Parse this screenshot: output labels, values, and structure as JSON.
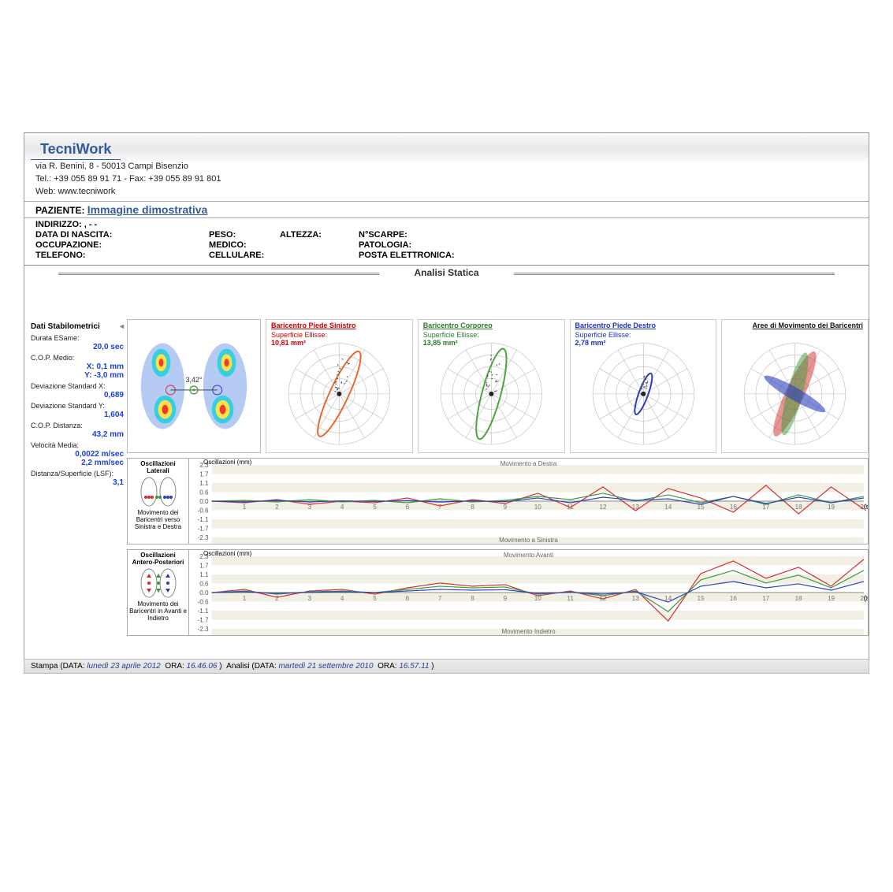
{
  "header": {
    "company": "TecniWork",
    "address": "via R. Benini, 8 - 50013  Campi Bisenzio",
    "tel": "Tel.: +39 055 89 91 71  - Fax: +39 055 89 91 801",
    "web": "Web: www.tecniwork"
  },
  "patient": {
    "label": "PAZIENTE:",
    "name": "Immagine  dimostrativa",
    "fields": {
      "indirizzo": "INDIRIZZO: ,   -   -",
      "dob": "DATA DI NASCITA:",
      "occup": "OCCUPAZIONE:",
      "tel": "TELEFONO:",
      "peso": "PESO:",
      "medico": "MEDICO:",
      "cell": "CELLULARE:",
      "altezza": "ALTEZZA:",
      "scarpe": "N°SCARPE:",
      "patologia": "PATOLOGIA:",
      "email": "POSTA ELETTRONICA:"
    }
  },
  "section_title": "Analisi Statica",
  "stabilo": {
    "title": "Dati Stabilometrici",
    "durata_l": "Durata ESame:",
    "durata_v": "20,0 sec",
    "cop_l": "C.O.P. Medio:",
    "cop_x": "X: 0,1 mm",
    "cop_y": "Y: -3,0 mm",
    "dsx_l": "Deviazione Standard X:",
    "dsx_v": "0,689",
    "dsy_l": "Deviazione Standard Y:",
    "dsy_v": "1,604",
    "dist_l": "C.O.P. Distanza:",
    "dist_v": "43,2 mm",
    "vel_l": "Velocità Media:",
    "vel_v1": "0,0022 m/sec",
    "vel_v2": "2,2 mm/sec",
    "lsf_l": "Distanza/Superficie (LSF):",
    "lsf_v": "3,1"
  },
  "footprint": {
    "angle_label": "3,42°"
  },
  "polar": {
    "left": {
      "title": "Baricentro Piede Sinistro",
      "sub": "Superficie Ellisse:",
      "val": "10,81 mm²",
      "color": "#e86a2a",
      "rot": 25
    },
    "body": {
      "title": "Baricentro Corporeo",
      "sub": "Superficie Ellisse:",
      "val": "13,85 mm²",
      "color": "#4aa63a",
      "rot": 15
    },
    "right": {
      "title": "Baricentro Piede Destro",
      "sub": "Superficie Ellisse:",
      "val": "2,78 mm²",
      "color": "#2a3fc0",
      "rot": 20
    },
    "areas": {
      "title": "Aree di Movimento dei Baricentri"
    }
  },
  "osc1": {
    "title": "Oscillazioni Laterali",
    "legend_sub": "Movimento dei Baricentri verso Sinistra e Destra",
    "chart_title": "Oscillazioni (mm)",
    "top": "Movimento a Destra",
    "bot": "Movimento a Sinistra",
    "yticks": [
      "2.3",
      "1.7",
      "1.1",
      "0.6",
      "0.0",
      "-0.6",
      "-1.1",
      "-1.7",
      "-2.3"
    ],
    "xmax": "20",
    "xunit": "(sec)",
    "series": {
      "red": {
        "color": "#d62c2c",
        "pts": [
          0,
          -0.1,
          0.1,
          -0.2,
          0.0,
          -0.1,
          0.2,
          -0.3,
          0.1,
          -0.15,
          0.5,
          -0.4,
          0.9,
          -0.6,
          0.8,
          0.2,
          -0.7,
          1.0,
          -0.8,
          0.9,
          -0.5
        ]
      },
      "green": {
        "color": "#3a9a3a",
        "pts": [
          0,
          0.05,
          -0.05,
          0.1,
          -0.05,
          0.05,
          -0.1,
          0.15,
          -0.05,
          0.05,
          0.3,
          0.1,
          0.5,
          0.0,
          0.4,
          -0.1,
          0.3,
          -0.2,
          0.4,
          -0.1,
          0.3
        ]
      },
      "blue": {
        "color": "#2a3fc0",
        "pts": [
          0,
          -0.05,
          0.05,
          -0.05,
          0.02,
          -0.02,
          0.04,
          -0.06,
          0.02,
          -0.03,
          0.2,
          -0.1,
          0.25,
          0.05,
          0.15,
          -0.2,
          0.3,
          -0.15,
          0.25,
          -0.1,
          0.2
        ]
      }
    }
  },
  "osc2": {
    "title": "Oscillazioni Antero-Posteriori",
    "legend_sub": "Movimento dei Baricentri in Avanti e Indietro",
    "chart_title": "Oscillazioni (mm)",
    "top": "Movimento Avanti",
    "bot": "Movimento Indietro",
    "yticks": [
      "2.3",
      "1.7",
      "1.1",
      "0.6",
      "0.0",
      "-0.6",
      "-1.1",
      "-1.7",
      "-2.3"
    ],
    "xmax": "20",
    "xunit": "(sec)",
    "series": {
      "red": {
        "color": "#d62c2c",
        "pts": [
          0,
          0.2,
          -0.3,
          0.1,
          0.2,
          -0.1,
          0.3,
          0.6,
          0.4,
          0.5,
          -0.2,
          0.1,
          -0.4,
          0.2,
          -1.8,
          1.2,
          2.0,
          0.9,
          1.6,
          0.4,
          2.1
        ]
      },
      "green": {
        "color": "#3a9a3a",
        "pts": [
          0,
          0.1,
          -0.1,
          0.05,
          0.1,
          0.0,
          0.2,
          0.4,
          0.3,
          0.35,
          -0.1,
          0.05,
          -0.2,
          0.1,
          -1.2,
          0.8,
          1.4,
          0.6,
          1.1,
          0.3,
          1.4
        ]
      },
      "blue": {
        "color": "#2a3fc0",
        "pts": [
          0,
          0.05,
          -0.05,
          0.02,
          0.05,
          0.0,
          0.1,
          0.2,
          0.15,
          0.18,
          -0.05,
          0.02,
          -0.1,
          0.05,
          -0.6,
          0.4,
          0.7,
          0.3,
          0.55,
          0.15,
          0.7
        ]
      }
    }
  },
  "footer": {
    "stampa_l": "Stampa (DATA:",
    "stampa_d": "lunedì 23 aprile 2012",
    "ora_l": "ORA:",
    "stampa_t": "16.46.06",
    "analisi_l": "Analisi (DATA:",
    "analisi_d": "martedì 21 settembre 2010",
    "analisi_t": "16.57.11"
  },
  "colors": {
    "red": "#d62c2c",
    "green": "#3a9a3a",
    "blue": "#2a3fc0",
    "orange": "#e86a2a"
  }
}
